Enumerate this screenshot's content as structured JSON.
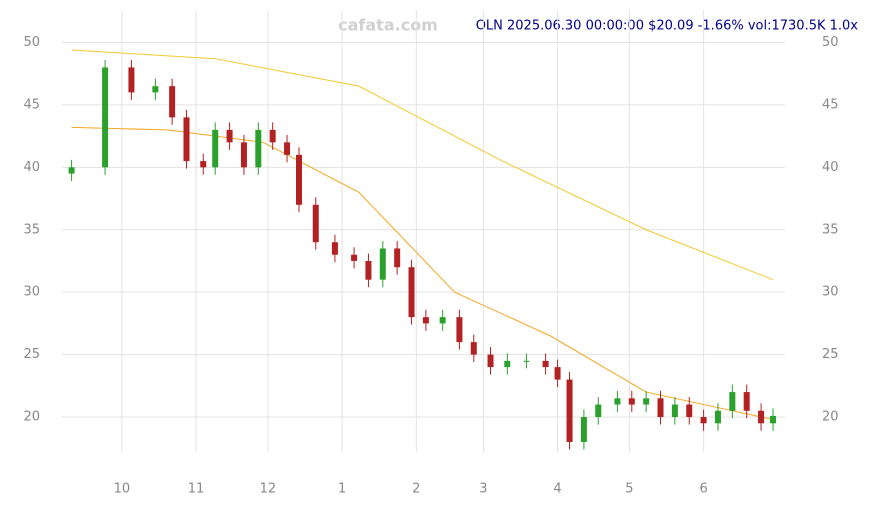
{
  "chart_data": {
    "type": "candlestick",
    "title": "OLN 2025.06.30 00:00:00 $20.09 -1.66% vol:1730.5K 1.0x",
    "watermark": "cafata.com",
    "x": [
      0,
      14,
      25,
      35,
      42,
      48,
      55,
      60,
      66,
      72,
      78,
      84,
      90,
      95,
      102,
      110,
      118,
      124,
      130,
      136,
      142,
      148,
      155,
      162,
      168,
      175,
      182,
      190,
      198,
      203,
      208,
      214,
      220,
      228,
      234,
      240,
      246,
      252,
      258,
      264,
      270,
      276,
      282,
      288,
      293
    ],
    "open": [
      39.5,
      40,
      48,
      46,
      46.5,
      44,
      40.5,
      40,
      43,
      42,
      40,
      43,
      42,
      41,
      37,
      34,
      33,
      32.5,
      31,
      33.5,
      32,
      28,
      27.5,
      28,
      26,
      25,
      24,
      24.5,
      24.5,
      24,
      23,
      18,
      20,
      21,
      21.5,
      21,
      21.5,
      20,
      21,
      20,
      19.5,
      20.5,
      22,
      20.5,
      19.5
    ],
    "high": [
      40.6,
      48.6,
      48.6,
      47.1,
      47.1,
      44.6,
      41.1,
      43.6,
      43.6,
      42.6,
      43.6,
      43.6,
      42.6,
      41.6,
      37.6,
      34.6,
      33.6,
      33.1,
      34.1,
      34.1,
      32.6,
      28.6,
      28.6,
      28.6,
      26.6,
      25.6,
      25.1,
      25.1,
      25.1,
      24.6,
      23.6,
      20.6,
      21.6,
      22.1,
      22.1,
      22.1,
      22.1,
      21.6,
      21.6,
      20.6,
      21.1,
      22.6,
      22.6,
      21.1,
      20.69
    ],
    "low": [
      38.9,
      39.4,
      45.4,
      45.4,
      43.4,
      39.9,
      39.4,
      39.4,
      41.4,
      39.4,
      39.4,
      41.4,
      40.4,
      36.4,
      33.4,
      32.4,
      31.9,
      30.4,
      30.4,
      31.4,
      27.4,
      26.9,
      26.9,
      25.4,
      24.4,
      23.4,
      23.4,
      23.9,
      23.4,
      22.4,
      17.4,
      17.4,
      19.4,
      20.4,
      20.4,
      20.4,
      19.4,
      19.4,
      19.4,
      18.9,
      18.9,
      19.9,
      19.9,
      18.9,
      18.9
    ],
    "close": [
      40,
      48,
      46,
      46.5,
      44,
      40.5,
      40,
      43,
      42,
      40,
      43,
      42,
      41,
      37,
      34,
      33,
      32.5,
      31,
      33.5,
      32,
      28,
      27.5,
      28,
      26,
      25,
      24,
      24.5,
      24.5,
      24,
      23,
      18,
      20,
      21,
      21.5,
      21,
      21.5,
      20,
      21,
      20,
      19.5,
      20.5,
      22,
      20.5,
      19.5,
      20.09
    ],
    "up_color": "#2ca02c",
    "down_color": "#b22222",
    "series": [
      {
        "color": "#f2c82f",
        "x": [
          0,
          60,
          120,
          180,
          240,
          293
        ],
        "values": [
          49.4,
          48.7,
          46.5,
          40.5,
          35,
          31
        ]
      },
      {
        "color": "#f5a623",
        "x": [
          0,
          40,
          80,
          120,
          160,
          200,
          240,
          293
        ],
        "values": [
          43.2,
          43,
          42,
          38,
          30,
          26.5,
          22,
          19.8
        ]
      }
    ],
    "xlim": [
      -4,
      298
    ],
    "ylim": [
      17.2,
      52.6
    ],
    "xticks": [
      {
        "value": 21,
        "label": "10"
      },
      {
        "value": 52,
        "label": "11"
      },
      {
        "value": 82,
        "label": "12"
      },
      {
        "value": 113,
        "label": "1"
      },
      {
        "value": 144,
        "label": "2"
      },
      {
        "value": 172,
        "label": "3"
      },
      {
        "value": 203,
        "label": "4"
      },
      {
        "value": 233,
        "label": "5"
      },
      {
        "value": 264,
        "label": "6"
      }
    ],
    "yticks": [
      20,
      25,
      30,
      35,
      40,
      45,
      50
    ],
    "grid": true
  }
}
